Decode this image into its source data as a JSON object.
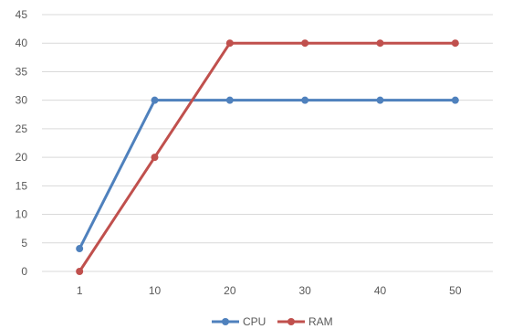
{
  "chart_data": {
    "type": "line",
    "categories": [
      "1",
      "10",
      "20",
      "30",
      "40",
      "50"
    ],
    "series": [
      {
        "name": "CPU",
        "color": "#4f81bd",
        "values": [
          4,
          30,
          30,
          30,
          30,
          30
        ]
      },
      {
        "name": "RAM",
        "color": "#c0504d",
        "values": [
          0,
          20,
          40,
          40,
          40,
          40
        ]
      }
    ],
    "ylim": [
      0,
      45
    ],
    "yticks": [
      "0",
      "5",
      "10",
      "15",
      "20",
      "25",
      "30",
      "35",
      "40",
      "45"
    ],
    "grid": true,
    "legend": "bottom",
    "title": "",
    "xlabel": "",
    "ylabel": ""
  }
}
